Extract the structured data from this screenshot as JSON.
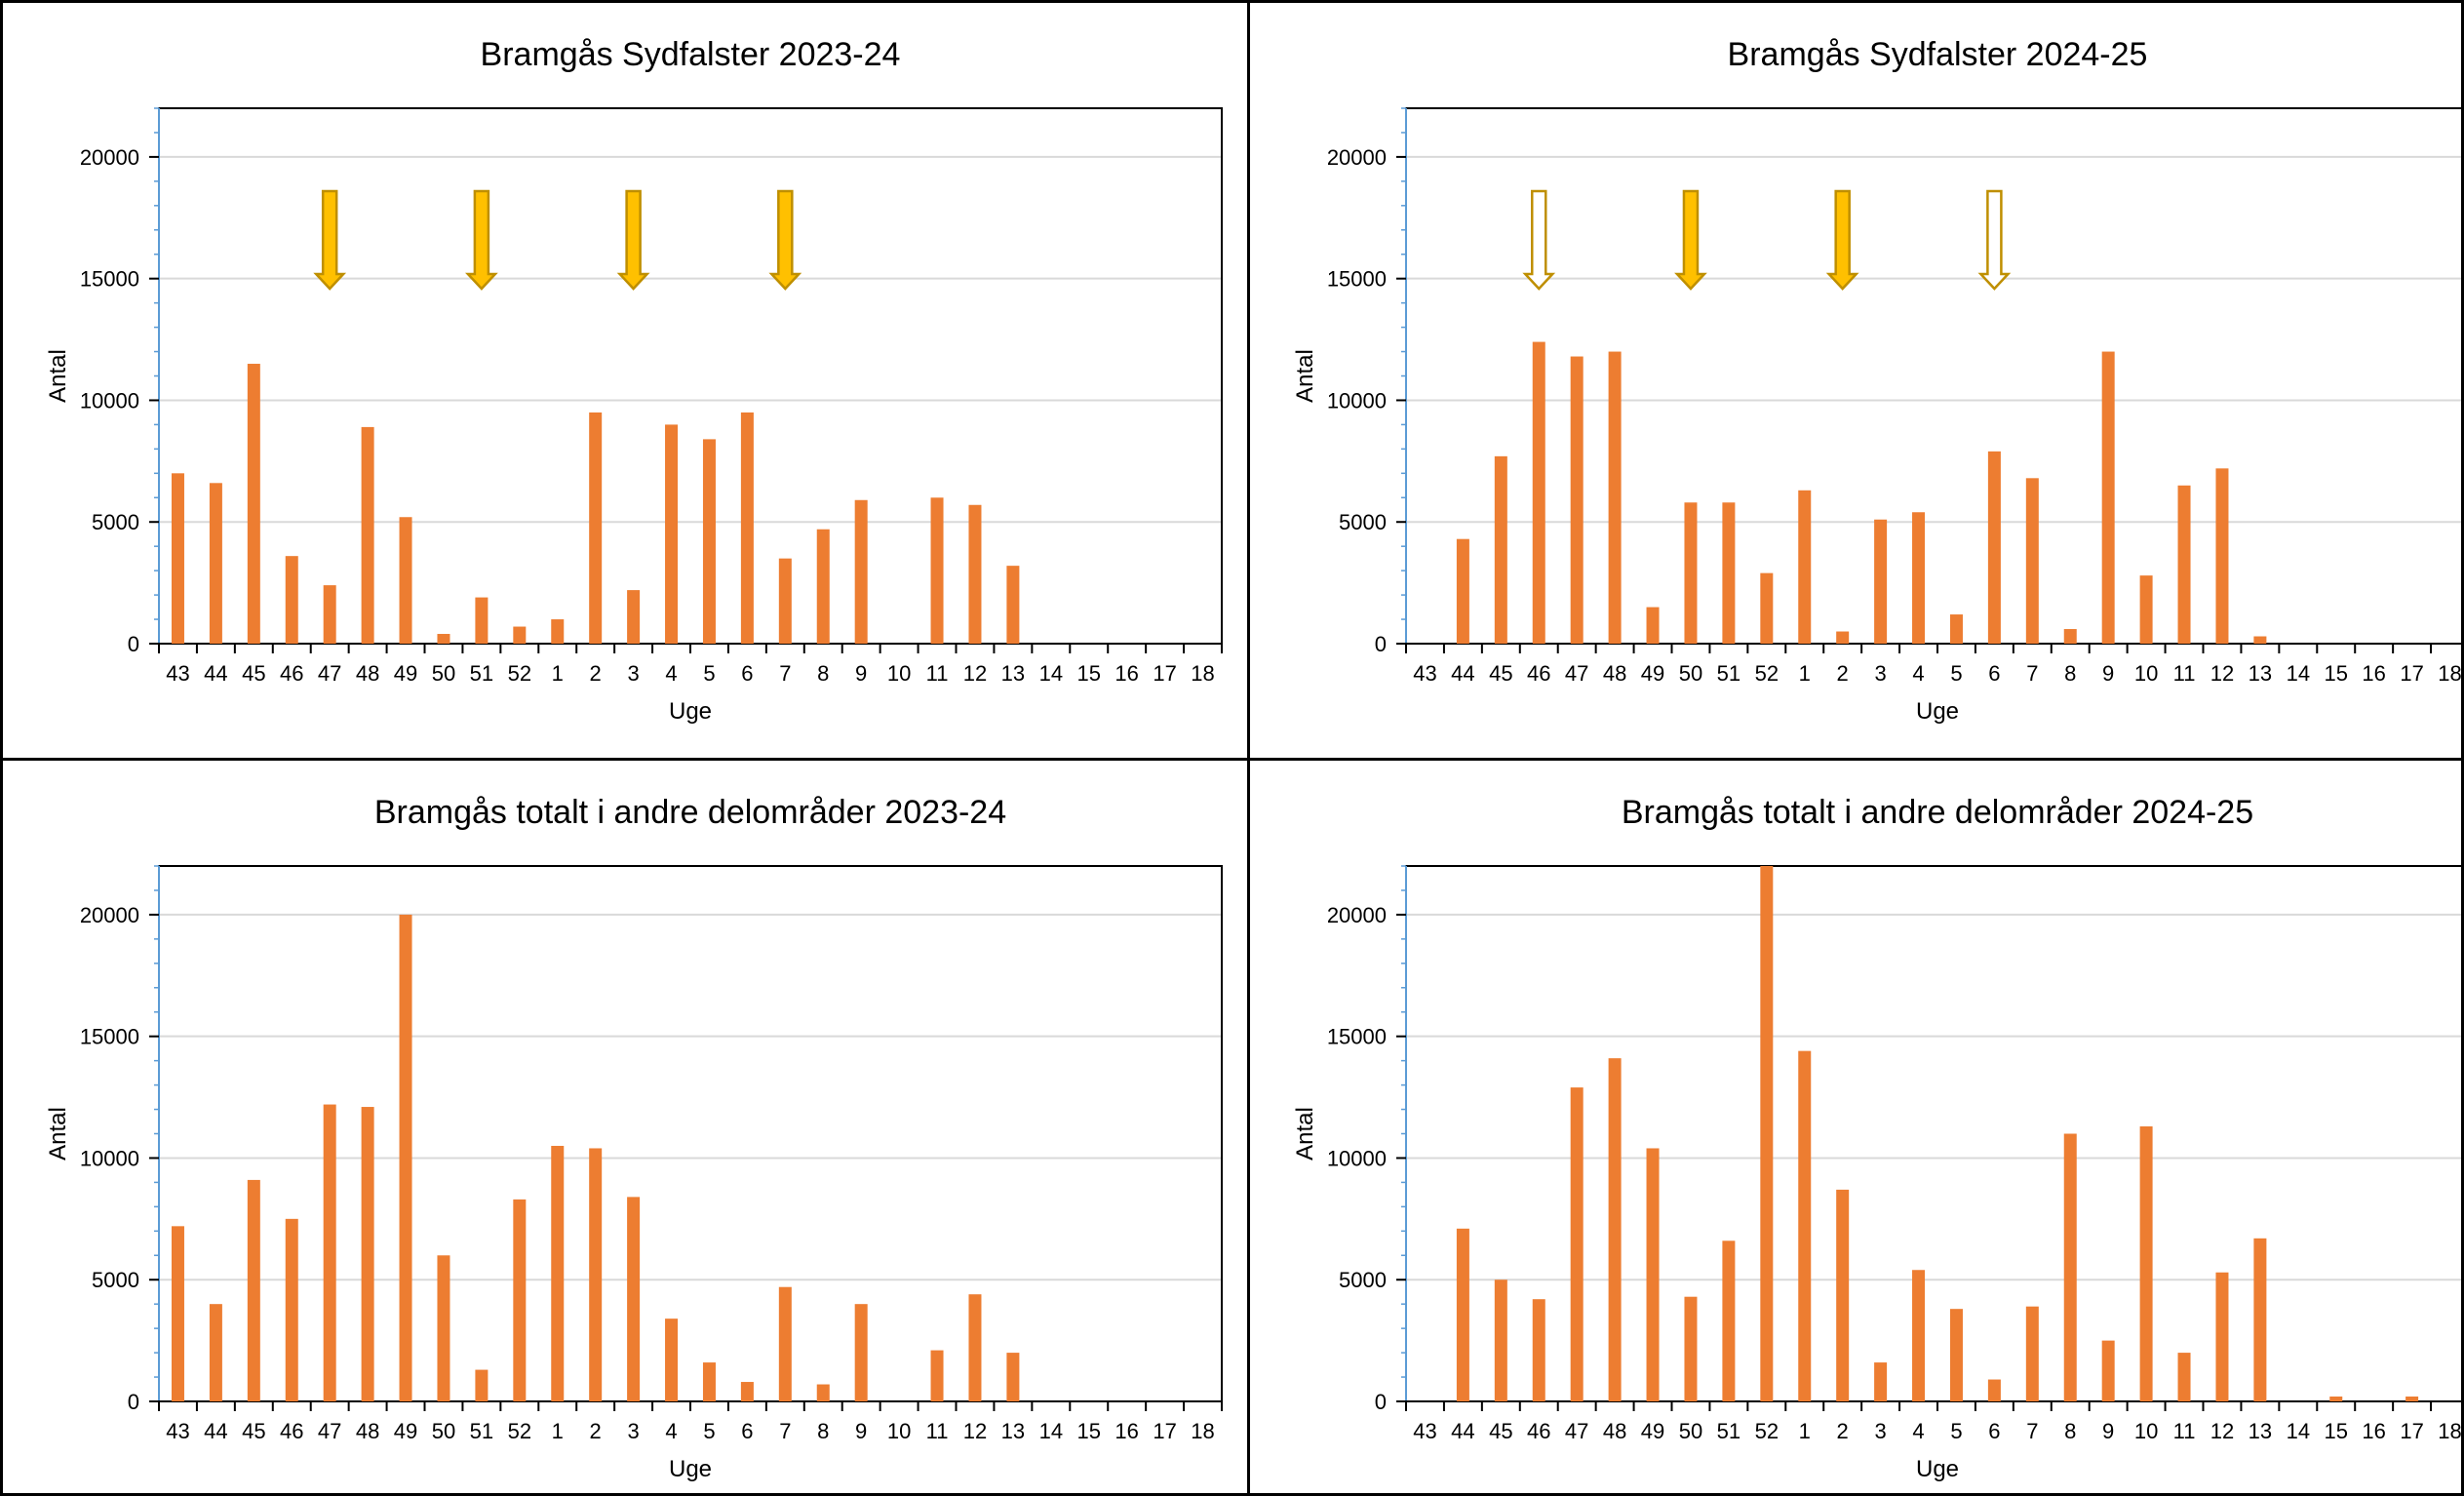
{
  "chart_data": [
    {
      "type": "bar",
      "title": "Bramgås Sydfalster 2023-24",
      "xlabel": "Uge",
      "ylabel": "Antal",
      "ylim": [
        0,
        22000
      ],
      "yticks": [
        0,
        5000,
        10000,
        15000,
        20000
      ],
      "grid": true,
      "categories": [
        "43",
        "44",
        "45",
        "46",
        "47",
        "48",
        "49",
        "50",
        "51",
        "52",
        "1",
        "2",
        "3",
        "4",
        "5",
        "6",
        "7",
        "8",
        "9",
        "10",
        "11",
        "12",
        "13",
        "14",
        "15",
        "16",
        "17",
        "18"
      ],
      "values": [
        7000,
        6600,
        11500,
        3600,
        2400,
        8900,
        5200,
        400,
        1900,
        700,
        1000,
        9500,
        2200,
        9000,
        8400,
        9500,
        3500,
        4700,
        5900,
        0,
        6000,
        5700,
        3200,
        0,
        0,
        0,
        0,
        0
      ],
      "arrows": [
        {
          "week": "47",
          "style": "filled"
        },
        {
          "week": "51",
          "style": "filled"
        },
        {
          "week": "3",
          "style": "filled"
        },
        {
          "week": "7",
          "style": "filled"
        }
      ],
      "colors": {
        "bar": "#ED7D31",
        "arrow_fill": "#FFC000",
        "arrow_stroke": "#BF8F00",
        "gridline": "#D9D9D9"
      }
    },
    {
      "type": "bar",
      "title": "Bramgås Sydfalster 2024-25",
      "xlabel": "Uge",
      "ylabel": "Antal",
      "ylim": [
        0,
        22000
      ],
      "yticks": [
        0,
        5000,
        10000,
        15000,
        20000
      ],
      "grid": true,
      "categories": [
        "43",
        "44",
        "45",
        "46",
        "47",
        "48",
        "49",
        "50",
        "51",
        "52",
        "1",
        "2",
        "3",
        "4",
        "5",
        "6",
        "7",
        "8",
        "9",
        "10",
        "11",
        "12",
        "13",
        "14",
        "15",
        "16",
        "17",
        "18"
      ],
      "values": [
        0,
        4300,
        7700,
        12400,
        11800,
        12000,
        1500,
        5800,
        5800,
        2900,
        6300,
        500,
        5100,
        5400,
        1200,
        7900,
        6800,
        600,
        12000,
        2800,
        6500,
        7200,
        300,
        0,
        0,
        0,
        0,
        0
      ],
      "arrows": [
        {
          "week": "46",
          "style": "outline"
        },
        {
          "week": "50",
          "style": "filled"
        },
        {
          "week": "2",
          "style": "filled"
        },
        {
          "week": "6",
          "style": "outline"
        }
      ],
      "colors": {
        "bar": "#ED7D31",
        "arrow_fill": "#FFC000",
        "arrow_stroke": "#BF8F00",
        "gridline": "#D9D9D9"
      }
    },
    {
      "type": "bar",
      "title": "Bramgås totalt i andre delområder 2023-24",
      "xlabel": "Uge",
      "ylabel": "Antal",
      "ylim": [
        0,
        22000
      ],
      "yticks": [
        0,
        5000,
        10000,
        15000,
        20000
      ],
      "grid": true,
      "categories": [
        "43",
        "44",
        "45",
        "46",
        "47",
        "48",
        "49",
        "50",
        "51",
        "52",
        "1",
        "2",
        "3",
        "4",
        "5",
        "6",
        "7",
        "8",
        "9",
        "10",
        "11",
        "12",
        "13",
        "14",
        "15",
        "16",
        "17",
        "18"
      ],
      "values": [
        7200,
        4000,
        9100,
        7500,
        12200,
        12100,
        20000,
        6000,
        1300,
        8300,
        10500,
        10400,
        8400,
        3400,
        1600,
        800,
        4700,
        700,
        4000,
        0,
        2100,
        4400,
        2000,
        0,
        0,
        0,
        0,
        0
      ],
      "arrows": [],
      "colors": {
        "bar": "#ED7D31",
        "gridline": "#D9D9D9"
      }
    },
    {
      "type": "bar",
      "title": "Bramgås totalt i andre delområder 2024-25",
      "xlabel": "Uge",
      "ylabel": "Antal",
      "ylim": [
        0,
        22000
      ],
      "yticks": [
        0,
        5000,
        10000,
        15000,
        20000
      ],
      "grid": true,
      "categories": [
        "43",
        "44",
        "45",
        "46",
        "47",
        "48",
        "49",
        "50",
        "51",
        "52",
        "1",
        "2",
        "3",
        "4",
        "5",
        "6",
        "7",
        "8",
        "9",
        "10",
        "11",
        "12",
        "13",
        "14",
        "15",
        "16",
        "17",
        "18"
      ],
      "values": [
        0,
        7100,
        5000,
        4200,
        12900,
        14100,
        10400,
        4300,
        6600,
        22500,
        14400,
        8700,
        1600,
        5400,
        3800,
        900,
        3900,
        11000,
        2500,
        11300,
        2000,
        5300,
        6700,
        0,
        200,
        0,
        200,
        0
      ],
      "arrows": [],
      "colors": {
        "bar": "#ED7D31",
        "gridline": "#D9D9D9"
      }
    }
  ]
}
